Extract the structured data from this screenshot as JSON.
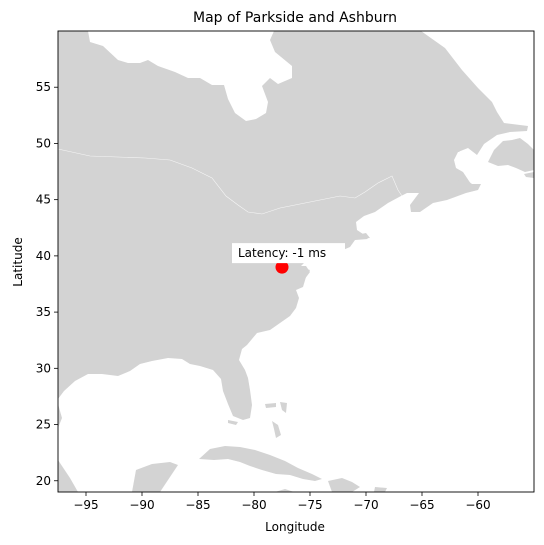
{
  "chart_data": {
    "type": "scatter",
    "title": "Map of Parkside and Ashburn",
    "xlabel": "Longitude",
    "ylabel": "Latitude",
    "xlim": [
      -97.5,
      -55.0
    ],
    "ylim": [
      19.0,
      60.0
    ],
    "x_ticks": [
      -95,
      -90,
      -85,
      -80,
      -75,
      -70,
      -65,
      -60
    ],
    "y_ticks": [
      20,
      25,
      30,
      35,
      40,
      45,
      50,
      55
    ],
    "x_tick_labels": [
      "−95",
      "−90",
      "−85",
      "−80",
      "−75",
      "−70",
      "−65",
      "−60"
    ],
    "y_tick_labels": [
      "20",
      "25",
      "30",
      "35",
      "40",
      "45",
      "50",
      "55"
    ],
    "points": [
      {
        "x": -77.5,
        "y": 39.0,
        "color": "#ff0000"
      }
    ],
    "annotation": {
      "text": "Latency: -1 ms",
      "x": -77.5,
      "y": 39.0
    },
    "land_color": "#d3d3d3",
    "ocean_color": "#ffffff",
    "grid": false
  }
}
